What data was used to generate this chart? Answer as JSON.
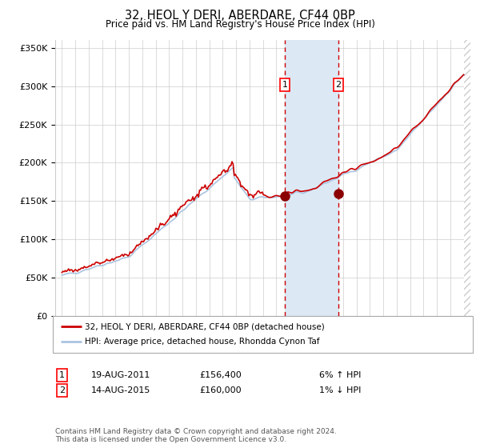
{
  "title": "32, HEOL Y DERI, ABERDARE, CF44 0BP",
  "subtitle": "Price paid vs. HM Land Registry's House Price Index (HPI)",
  "legend_line1": "32, HEOL Y DERI, ABERDARE, CF44 0BP (detached house)",
  "legend_line2": "HPI: Average price, detached house, Rhondda Cynon Taf",
  "footnote": "Contains HM Land Registry data © Crown copyright and database right 2024.\nThis data is licensed under the Open Government Licence v3.0.",
  "marker1_date": "19-AUG-2011",
  "marker1_price": 156400,
  "marker1_label": "6% ↑ HPI",
  "marker2_date": "14-AUG-2015",
  "marker2_price": 160000,
  "marker2_label": "1% ↓ HPI",
  "marker1_x": 2011.635,
  "marker2_x": 2015.635,
  "hpi_color": "#aac4e0",
  "price_color": "#cc0000",
  "marker_color": "#8b0000",
  "shading_color": "#dce9f5",
  "grid_color": "#cccccc",
  "background_color": "#ffffff",
  "ylim": [
    0,
    360000
  ],
  "xlim": [
    1994.5,
    2025.5
  ],
  "yticks": [
    0,
    50000,
    100000,
    150000,
    200000,
    250000,
    300000,
    350000
  ],
  "ytick_labels": [
    "£0",
    "£50K",
    "£100K",
    "£150K",
    "£200K",
    "£250K",
    "£300K",
    "£350K"
  ],
  "xticks": [
    1995,
    1996,
    1997,
    1998,
    1999,
    2000,
    2001,
    2002,
    2003,
    2004,
    2005,
    2006,
    2007,
    2008,
    2009,
    2010,
    2011,
    2012,
    2013,
    2014,
    2015,
    2016,
    2017,
    2018,
    2019,
    2020,
    2021,
    2022,
    2023,
    2024,
    2025
  ]
}
